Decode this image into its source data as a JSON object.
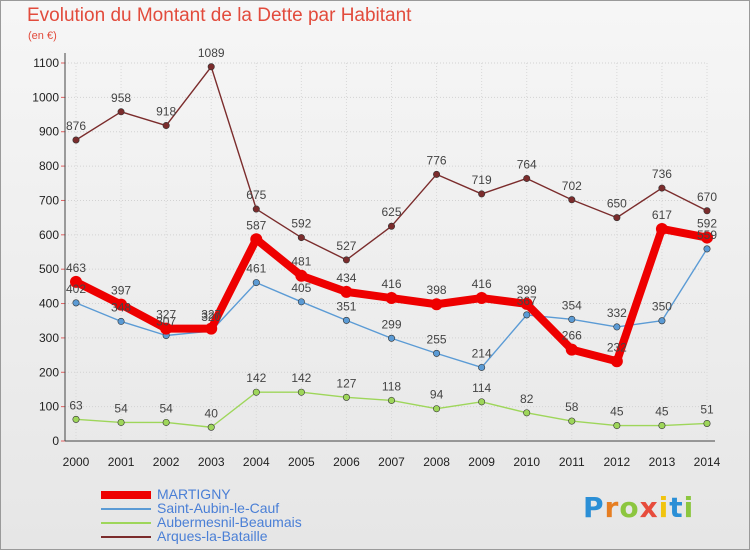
{
  "header": {
    "title": "Evolution du Montant de la Dette par Habitant",
    "unit": "(en €)"
  },
  "logo": {
    "text": "Proxiti",
    "letters": [
      "P",
      "r",
      "o",
      "x",
      "i",
      "t",
      "i"
    ],
    "colors": [
      "#2b8fd6",
      "#e67e22",
      "#8cc63f",
      "#e74c3c",
      "#f1c40f",
      "#2b8fd6",
      "#8cc63f"
    ]
  },
  "chart_data": {
    "type": "line",
    "x": [
      "2000",
      "2001",
      "2002",
      "2003",
      "2004",
      "2005",
      "2006",
      "2007",
      "2008",
      "2009",
      "2010",
      "2011",
      "2012",
      "2013",
      "2014"
    ],
    "ylim": [
      0,
      1100
    ],
    "yticks": [
      "0",
      "100",
      "200",
      "300",
      "400",
      "500",
      "600",
      "700",
      "800",
      "900",
      "1000",
      "1100"
    ],
    "grid": true,
    "legend_position": "bottom-left",
    "series": [
      {
        "name": "MARTIGNY",
        "color": "#ee0000",
        "values": [
          463,
          397,
          327,
          327,
          587,
          481,
          434,
          416,
          398,
          416,
          399,
          266,
          232,
          617,
          592
        ],
        "labels": [
          "463",
          "397",
          "327",
          "327",
          "587",
          "481",
          "434",
          "416",
          "398",
          "416",
          "399",
          "266",
          "232",
          "617",
          "592"
        ]
      },
      {
        "name": "Saint-Aubin-le-Cauf",
        "color": "#5b9bd5",
        "values": [
          402,
          348,
          307,
          320,
          461,
          405,
          351,
          299,
          255,
          214,
          367,
          354,
          332,
          350,
          559
        ],
        "labels": [
          "402",
          "348",
          "307",
          "320",
          "461",
          "405",
          "351",
          "299",
          "255",
          "214",
          "367",
          "354",
          "332",
          "350",
          "559"
        ]
      },
      {
        "name": "Aubermesnil-Beaumais",
        "color": "#9ed65a",
        "values": [
          63,
          54,
          54,
          40,
          142,
          142,
          127,
          118,
          94,
          114,
          82,
          58,
          45,
          45,
          51
        ],
        "labels": [
          "63",
          "54",
          "54",
          "40",
          "142",
          "142",
          "127",
          "118",
          "94",
          "114",
          "82",
          "58",
          "45",
          "45",
          "51"
        ]
      },
      {
        "name": "Arques-la-Bataille",
        "color": "#7b2c2c",
        "values": [
          876,
          958,
          918,
          1089,
          675,
          592,
          527,
          625,
          776,
          719,
          764,
          702,
          650,
          736,
          670
        ],
        "labels": [
          "876",
          "958",
          "918",
          "1089",
          "675",
          "592",
          "527",
          "625",
          "776",
          "719",
          "764",
          "702",
          "650",
          "736",
          "670"
        ]
      }
    ]
  }
}
